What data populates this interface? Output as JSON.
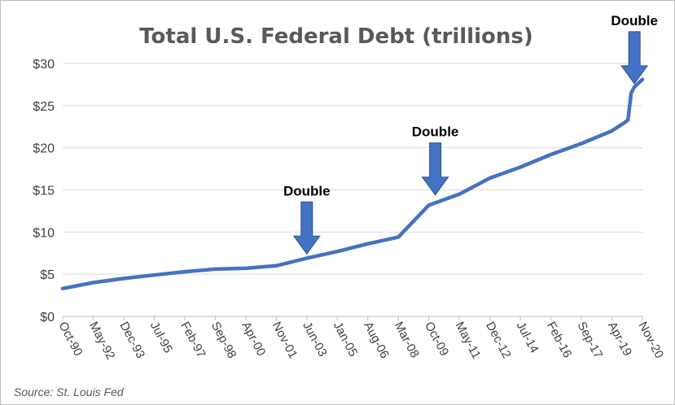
{
  "chart_data": {
    "type": "line",
    "title": "Total U.S. Federal Debt (trillions)",
    "xlabel": "",
    "ylabel": "",
    "ylim": [
      0,
      30
    ],
    "yticks": [
      0,
      5,
      10,
      15,
      20,
      25,
      30
    ],
    "ytick_labels": [
      "$0",
      "$5",
      "$10",
      "$15",
      "$20",
      "$25",
      "$30"
    ],
    "x_tick_labels": [
      "Oct-90",
      "May-92",
      "Dec-93",
      "Jul-95",
      "Feb-97",
      "Sep-98",
      "Apr-00",
      "Nov-01",
      "Jun-03",
      "Jan-05",
      "Aug-06",
      "Mar-08",
      "Oct-09",
      "May-11",
      "Dec-12",
      "Jul-14",
      "Feb-16",
      "Sep-17",
      "Apr-19",
      "Nov-20"
    ],
    "grid": true,
    "line_color": "#4472C4",
    "series": [
      {
        "x": [
          "Oct-90",
          "May-92",
          "Dec-93",
          "Jul-95",
          "Feb-97",
          "Sep-98",
          "Apr-00",
          "Nov-01",
          "Jun-03",
          "Jan-05",
          "Aug-06",
          "Mar-08",
          "Oct-09",
          "May-11",
          "Dec-12",
          "Jul-14",
          "Feb-16",
          "Sep-17",
          "Apr-19",
          "Dec-19",
          "Feb-20",
          "Apr-20",
          "Jun-20",
          "Nov-20"
        ],
        "y": [
          3.3,
          4.0,
          4.5,
          4.9,
          5.3,
          5.6,
          5.7,
          6.0,
          6.9,
          7.7,
          8.6,
          9.4,
          13.2,
          14.5,
          16.4,
          17.7,
          19.2,
          20.5,
          22.0,
          23.0,
          23.3,
          26.5,
          27.2,
          28.1
        ]
      }
    ],
    "annotations": [
      {
        "text": "Double",
        "x": "Jun-03",
        "y": 7.4
      },
      {
        "text": "Double",
        "x": "Feb-10",
        "y": 14.4
      },
      {
        "text": "Double",
        "x": "Jun-20",
        "y": 27.6
      }
    ],
    "source": "Source: St. Louis Fed",
    "arrow_color": "#4472C4"
  }
}
